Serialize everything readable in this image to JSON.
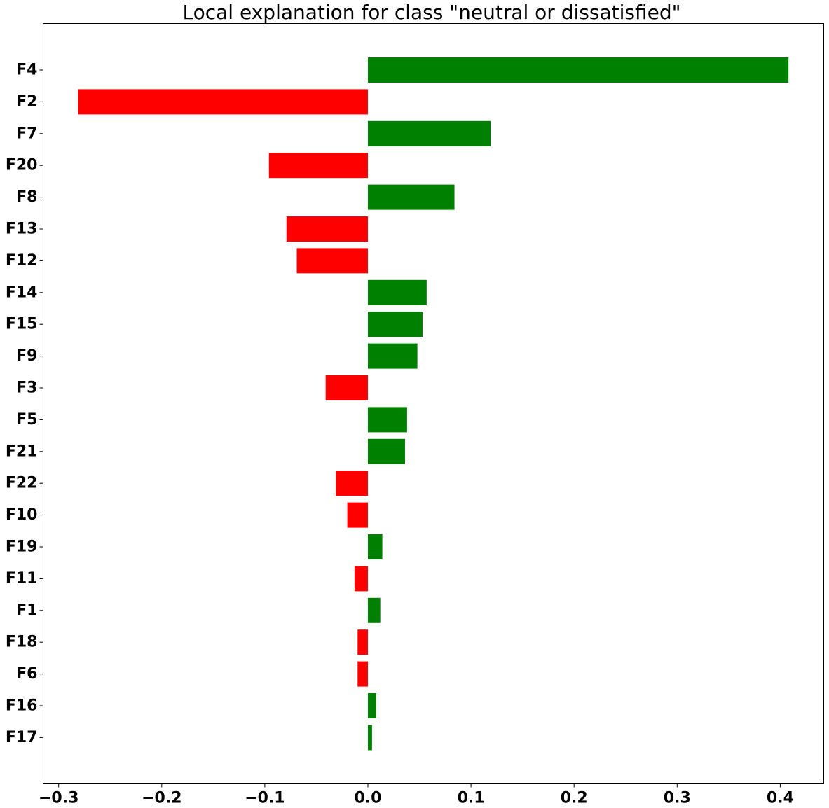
{
  "chart_data": {
    "type": "bar",
    "orientation": "horizontal",
    "title": "Local explanation for class \"neutral or dissatisfied\"",
    "xlabel": "",
    "ylabel": "",
    "xlim": [
      -0.315,
      0.44
    ],
    "xticks": [
      -0.3,
      -0.2,
      -0.1,
      0.0,
      0.1,
      0.2,
      0.3,
      0.4
    ],
    "xtick_labels": [
      "−0.3",
      "−0.2",
      "−0.1",
      "0.0",
      "0.1",
      "0.2",
      "0.3",
      "0.4"
    ],
    "grid": false,
    "positive_color": "#008000",
    "negative_color": "#ff0000",
    "categories": [
      "F4",
      "F2",
      "F7",
      "F20",
      "F8",
      "F13",
      "F12",
      "F14",
      "F15",
      "F9",
      "F3",
      "F5",
      "F21",
      "F22",
      "F10",
      "F19",
      "F11",
      "F1",
      "F18",
      "F6",
      "F16",
      "F17"
    ],
    "values": [
      0.408,
      -0.281,
      0.119,
      -0.096,
      0.084,
      -0.079,
      -0.069,
      0.057,
      0.053,
      0.048,
      -0.041,
      0.038,
      0.036,
      -0.031,
      -0.02,
      0.014,
      -0.013,
      0.012,
      -0.01,
      -0.01,
      0.008,
      0.004
    ]
  }
}
